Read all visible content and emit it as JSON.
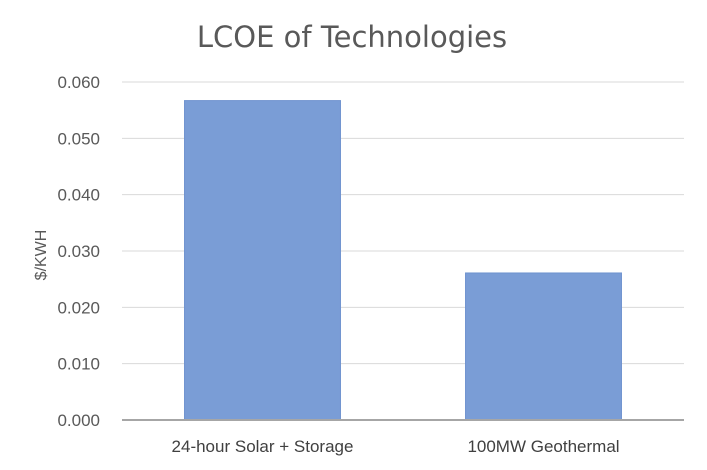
{
  "chart_data": {
    "type": "bar",
    "title": "LCOE of Technologies",
    "xlabel": "",
    "ylabel": "$/KWH",
    "categories": [
      "24-hour Solar + Storage",
      "100MW Geothermal"
    ],
    "values": [
      0.0567,
      0.0261
    ],
    "ylim": [
      0,
      0.06
    ],
    "yticks": [
      "0.000",
      "0.010",
      "0.020",
      "0.030",
      "0.040",
      "0.050",
      "0.060"
    ],
    "grid": true,
    "legend": "none",
    "bar_color": "#7a9dd6",
    "bar_edge_color": "#6f93cf"
  }
}
